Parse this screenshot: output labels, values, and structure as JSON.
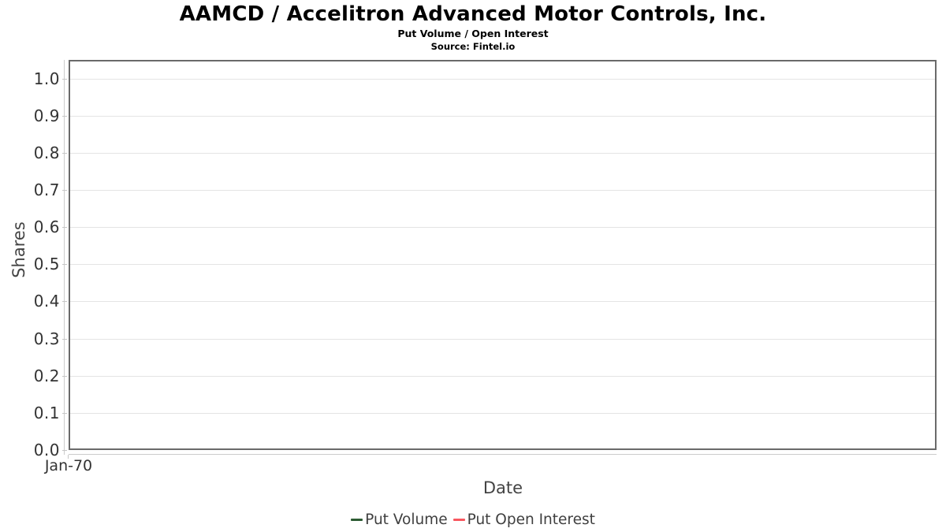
{
  "header": {
    "title": "AAMCD / Accelitron Advanced Motor Controls, Inc.",
    "subtitle": "Put Volume / Open Interest",
    "source": "Source: Fintel.io"
  },
  "chart_data": {
    "type": "line",
    "title": "AAMCD / Accelitron Advanced Motor Controls, Inc.",
    "subtitle": "Put Volume / Open Interest",
    "source": "Source: Fintel.io",
    "xlabel": "Date",
    "ylabel": "Shares",
    "ylim": [
      0,
      1.05
    ],
    "yticks": [
      0.0,
      0.1,
      0.2,
      0.3,
      0.4,
      0.5,
      0.6,
      0.7,
      0.8,
      0.9,
      1.0
    ],
    "ytick_labels": [
      "0.0",
      "0.1",
      "0.2",
      "0.3",
      "0.4",
      "0.5",
      "0.6",
      "0.7",
      "0.8",
      "0.9",
      "1.0"
    ],
    "xtick_labels": [
      "Jan-70"
    ],
    "grid": true,
    "legend_position": "bottom",
    "series": [
      {
        "name": "Put Volume",
        "color": "#2d5c33",
        "x": [],
        "values": []
      },
      {
        "name": "Put Open Interest",
        "color": "#f8575f",
        "x": [],
        "values": []
      }
    ]
  }
}
